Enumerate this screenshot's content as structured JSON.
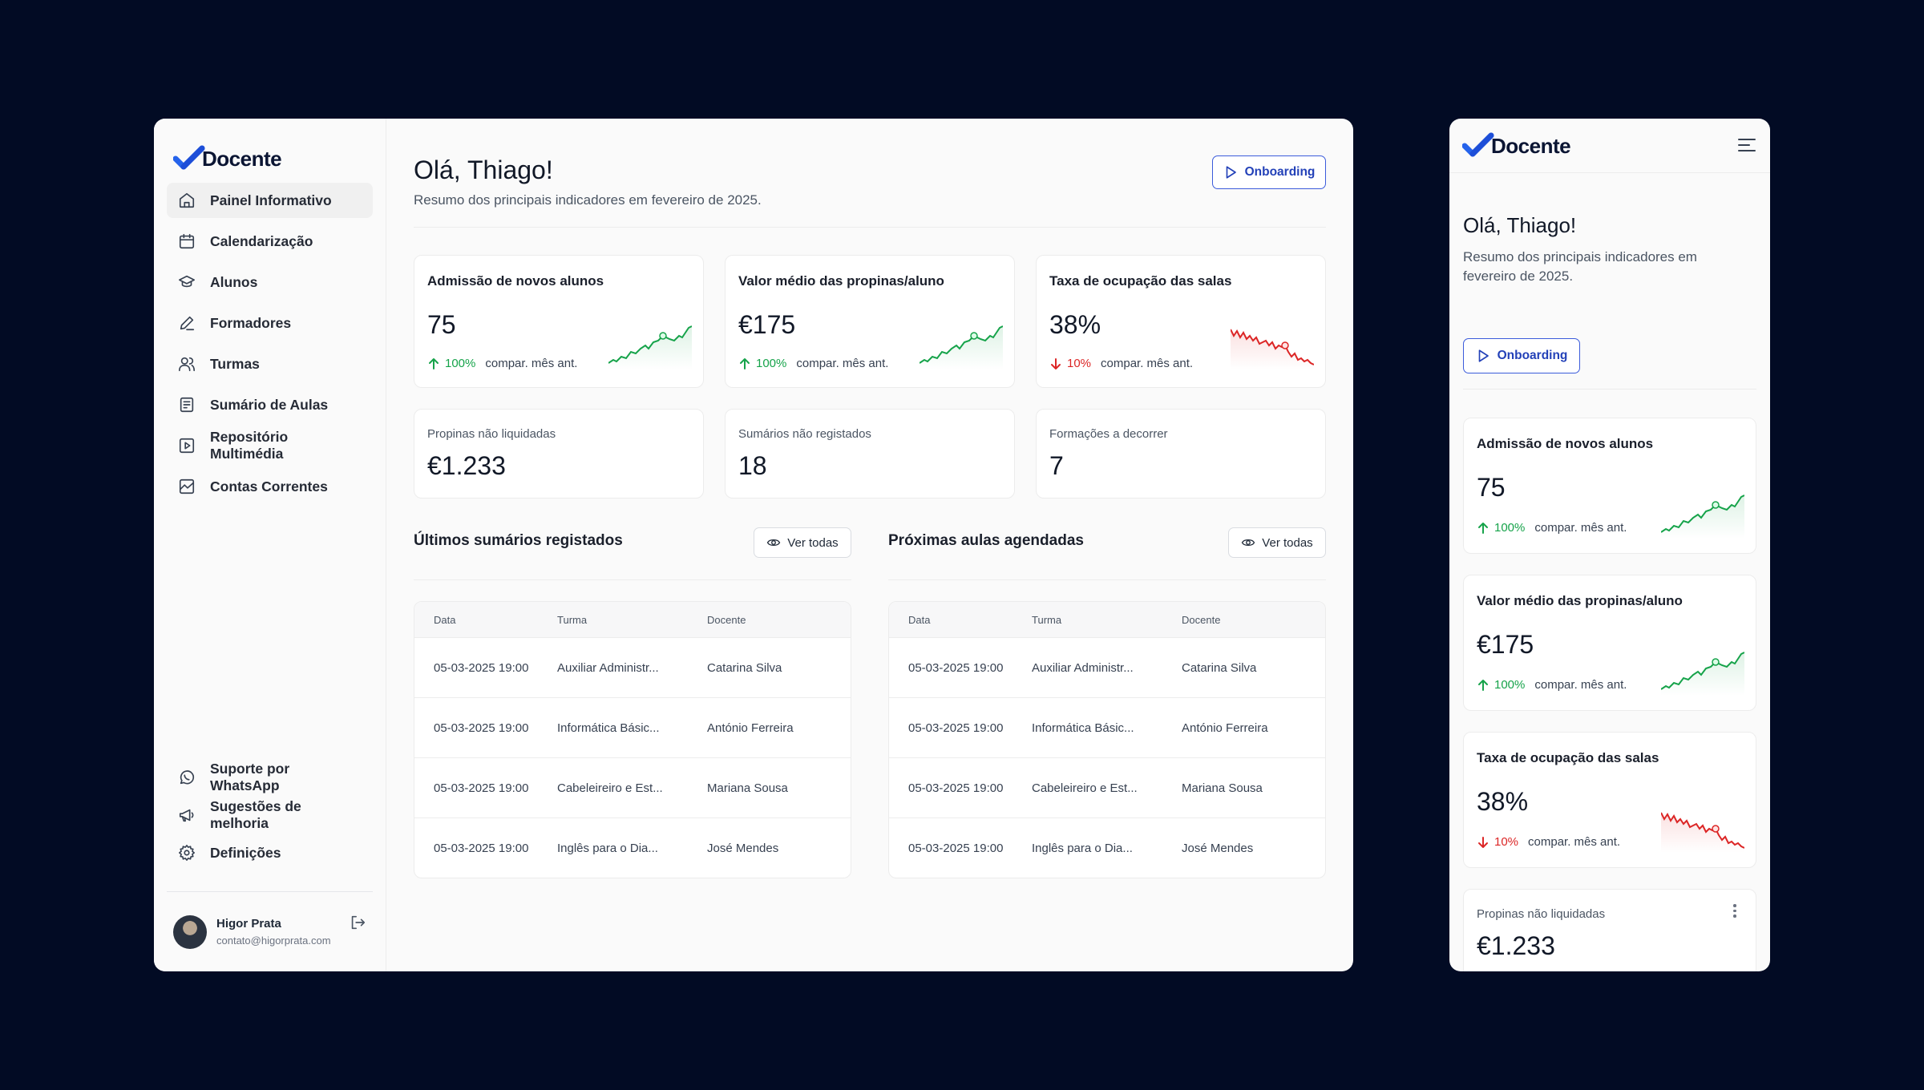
{
  "brand": {
    "name": "Docente",
    "accent": "#2563eb"
  },
  "sidebar": {
    "items": [
      {
        "label": "Painel Informativo",
        "icon": "home-icon"
      },
      {
        "label": "Calendarização",
        "icon": "calendar-icon"
      },
      {
        "label": "Alunos",
        "icon": "graduation-cap-icon"
      },
      {
        "label": "Formadores",
        "icon": "pen-icon"
      },
      {
        "label": "Turmas",
        "icon": "users-icon"
      },
      {
        "label": "Sumário de Aulas",
        "icon": "document-icon"
      },
      {
        "label": "Repositório Multimédia",
        "icon": "play-square-icon"
      },
      {
        "label": "Contas Correntes",
        "icon": "chart-square-icon"
      }
    ],
    "bottom_items": [
      {
        "label": "Suporte por WhatsApp",
        "icon": "whatsapp-icon"
      },
      {
        "label": "Sugestões de melhoria",
        "icon": "megaphone-icon"
      },
      {
        "label": "Definições",
        "icon": "gear-icon"
      }
    ],
    "user": {
      "name": "Higor Prata",
      "email": "contato@higorprata.com"
    }
  },
  "header": {
    "greeting": "Olá, Thiago!",
    "subtitle": "Resumo dos principais indicadores em fevereiro de 2025.",
    "onboarding_label": "Onboarding"
  },
  "kpis": [
    {
      "title": "Admissão de novos alunos",
      "value": "75",
      "delta": "100%",
      "compare": "compar. mês ant.",
      "trend": "up"
    },
    {
      "title": "Valor médio das propinas/aluno",
      "value": "€175",
      "delta": "100%",
      "compare": "compar. mês ant.",
      "trend": "up"
    },
    {
      "title": "Taxa de ocupação das salas",
      "value": "38%",
      "delta": "10%",
      "compare": "compar. mês ant.",
      "trend": "down"
    }
  ],
  "stats": [
    {
      "label": "Propinas não liquidadas",
      "value": "€1.233"
    },
    {
      "label": "Sumários não registados",
      "value": "18"
    },
    {
      "label": "Formações a decorrer",
      "value": "7"
    }
  ],
  "tables": [
    {
      "title": "Últimos sumários registados",
      "button": "Ver todas",
      "columns": [
        "Data",
        "Turma",
        "Docente"
      ],
      "rows": [
        [
          "05-03-2025 19:00",
          "Auxiliar Administr...",
          "Catarina Silva"
        ],
        [
          "05-03-2025 19:00",
          "Informática Básic...",
          "António Ferreira"
        ],
        [
          "05-03-2025 19:00",
          "Cabeleireiro e Est...",
          "Mariana Sousa"
        ],
        [
          "05-03-2025 19:00",
          "Inglês para o Dia...",
          "José Mendes"
        ]
      ]
    },
    {
      "title": "Próximas aulas agendadas",
      "button": "Ver todas",
      "columns": [
        "Data",
        "Turma",
        "Docente"
      ],
      "rows": [
        [
          "05-03-2025 19:00",
          "Auxiliar Administr...",
          "Catarina Silva"
        ],
        [
          "05-03-2025 19:00",
          "Informática Básic...",
          "António Ferreira"
        ],
        [
          "05-03-2025 19:00",
          "Cabeleireiro e Est...",
          "Mariana Sousa"
        ],
        [
          "05-03-2025 19:00",
          "Inglês para o Dia...",
          "José Mendes"
        ]
      ]
    }
  ],
  "mobile": {
    "greeting": "Olá, Thiago!",
    "subtitle": "Resumo dos principais indicadores em fevereiro de 2025.",
    "onboarding_label": "Onboarding"
  },
  "colors": {
    "up": "#16a34a",
    "down": "#dc2626",
    "background": "#020b24"
  }
}
